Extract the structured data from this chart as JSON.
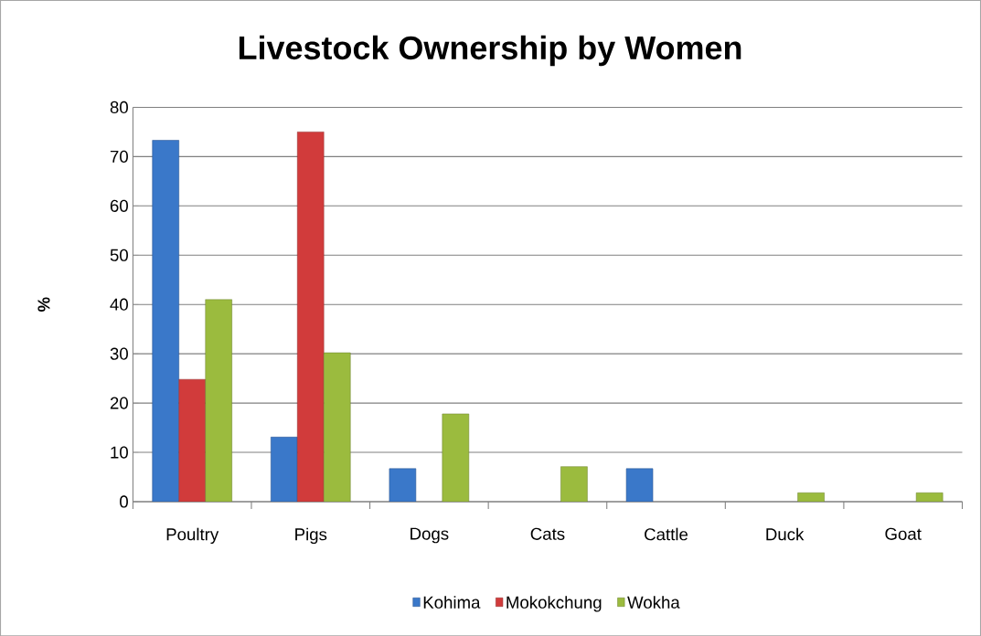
{
  "chart_data": {
    "type": "bar",
    "title": "Livestock Ownership by Women",
    "ylabel": "%",
    "categories": [
      "Poultry",
      "Pigs",
      "Dogs",
      "Cats",
      "Cattle",
      "Duck",
      "Goat"
    ],
    "series": [
      {
        "name": "Kohima",
        "color": "#3a78c9",
        "values": [
          73.3,
          13.1,
          6.7,
          null,
          6.7,
          null,
          null
        ]
      },
      {
        "name": "Mokokchung",
        "color": "#d13b3b",
        "values": [
          24.8,
          75.0,
          null,
          null,
          null,
          null,
          null
        ]
      },
      {
        "name": "Wokha",
        "color": "#9bbb3e",
        "values": [
          41.0,
          30.2,
          17.8,
          7.1,
          null,
          1.8,
          1.8
        ]
      }
    ],
    "ylim": [
      0,
      80
    ],
    "yticks": [
      0,
      10,
      20,
      30,
      40,
      50,
      60,
      70,
      80
    ],
    "grid": "y",
    "legend": "bottom"
  }
}
